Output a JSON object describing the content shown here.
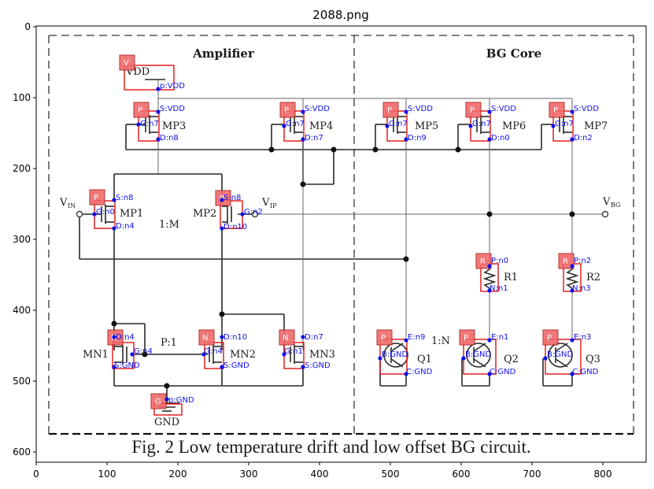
{
  "figure": {
    "title": "2088.png",
    "x_ticks": [
      "0",
      "100",
      "200",
      "300",
      "400",
      "500",
      "600",
      "700",
      "800"
    ],
    "y_ticks": [
      "0",
      "100",
      "200",
      "300",
      "400",
      "500",
      "600"
    ]
  },
  "sections": {
    "amplifier": "Amplifier",
    "bg_core": "BG Core"
  },
  "caption": "Fig. 2 Low temperature drift and low offset BG circuit.",
  "labels": {
    "vdd": "VDD",
    "gnd": "GND",
    "mp1": "MP1",
    "mp2": "MP2",
    "mp3": "MP3",
    "mp4": "MP4",
    "mp5": "MP5",
    "mp6": "MP6",
    "mp7": "MP7",
    "mn1": "MN1",
    "mn2": "MN2",
    "mn3": "MN3",
    "q1": "Q1",
    "q2": "Q2",
    "q3": "Q3",
    "r1": "R1",
    "r2": "R2",
    "ratio_m": "1:M",
    "ratio_p": "P:1",
    "ratio_n": "1:N",
    "vin": "V",
    "vin_sub": "IN",
    "vip": "V",
    "vip_sub": "IP",
    "vbg": "V",
    "vbg_sub": "BG"
  },
  "tags": {
    "v": "V",
    "g": "G",
    "p": "P",
    "n": "N",
    "r": "R"
  },
  "annotations": {
    "vdd_pin": "p:VDD",
    "gnd_pin": "p:GND",
    "mp3_s": "S:VDD",
    "mp3_g": "G:n7",
    "mp3_d": "D:n8",
    "mp4_s": "S:VDD",
    "mp4_g": "G:n7",
    "mp4_d": "D:n7",
    "mp5_s": "S:VDD",
    "mp5_g": "G:n7",
    "mp5_d": "D:n9",
    "mp6_s": "S:VDD",
    "mp6_g": "G:n7",
    "mp6_d": "D:n0",
    "mp7_s": "S:VDD",
    "mp7_g": "G:n7",
    "mp7_d": "D:n2",
    "mp1_s": "S:n8",
    "mp1_g": "G:n0",
    "mp1_d": "D:n4",
    "mp2_s": "S:n8",
    "mp2_g": "G:n2",
    "mp2_d": "D:n10",
    "r1_p": "P:n0",
    "r1_n": "N:n1",
    "r2_p": "P:n2",
    "r2_n": "N:n3",
    "mn1_d": "D:n4",
    "mn1_g": "G:n4",
    "mn1_s": "S:GND",
    "mn2_d": "D:n10",
    "mn2_g": "G:n4",
    "mn2_s": "S:GND",
    "mn3_d": "D:n7",
    "mn3_g": "G:n1",
    "mn3_s": "S:GND",
    "q1_e": "E:n9",
    "q1_b": "B:GND",
    "q1_c": "C:GND",
    "q2_e": "E:n1",
    "q2_b": "B:GND",
    "q2_c": "C:GND",
    "q3_e": "E:n3",
    "q3_b": "B:GND",
    "q3_c": "C:GND"
  }
}
